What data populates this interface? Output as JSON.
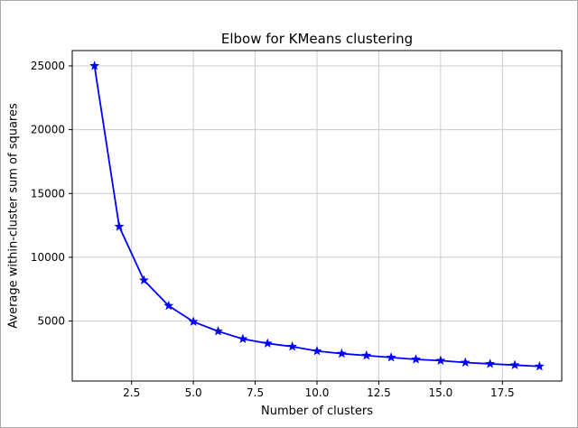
{
  "chart_data": {
    "type": "line",
    "title": "Elbow for KMeans clustering",
    "xlabel": "Number of clusters",
    "ylabel": "Average within-cluster sum of squares",
    "x": [
      1,
      2,
      3,
      4,
      5,
      6,
      7,
      8,
      9,
      10,
      11,
      12,
      13,
      14,
      15,
      16,
      17,
      18,
      19
    ],
    "y": [
      25000,
      12400,
      8200,
      6200,
      4950,
      4200,
      3600,
      3250,
      3000,
      2650,
      2450,
      2300,
      2150,
      2000,
      1900,
      1750,
      1650,
      1550,
      1450
    ],
    "xlim": [
      0.1,
      19.9
    ],
    "ylim": [
      300,
      26200
    ],
    "xticks": [
      2.5,
      5.0,
      7.5,
      10.0,
      12.5,
      15.0,
      17.5
    ],
    "xtick_labels": [
      "2.5",
      "5.0",
      "7.5",
      "10.0",
      "12.5",
      "15.0",
      "17.5"
    ],
    "yticks": [
      5000,
      10000,
      15000,
      20000,
      25000
    ],
    "ytick_labels": [
      "5000",
      "10000",
      "15000",
      "20000",
      "25000"
    ],
    "line_color": "#0000ff",
    "marker": "star",
    "grid": true,
    "grid_color": "#cccccc",
    "axes_edge_color": "#000000",
    "legend_position": "none"
  }
}
